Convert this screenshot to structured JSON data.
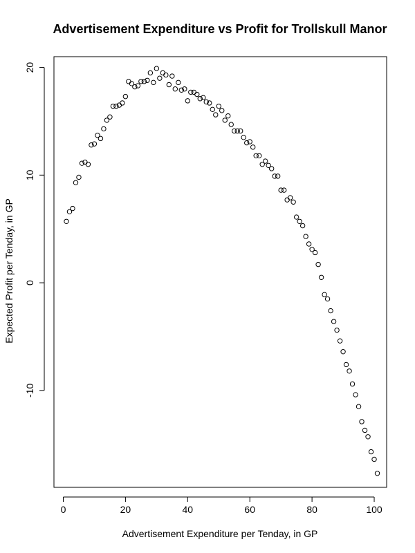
{
  "chart_data": {
    "type": "scatter",
    "title": "Advertisement Expenditure vs Profit for Trollskull Manor",
    "xlabel": "Advertisement Expenditure per Tenday, in GP",
    "ylabel": "Expected Profit per Tenday, in GP",
    "xlim": [
      -3,
      104
    ],
    "ylim": [
      -19,
      21
    ],
    "xticks": [
      0,
      20,
      40,
      60,
      80,
      100
    ],
    "yticks": [
      -10,
      0,
      10,
      20
    ],
    "grid": false,
    "legend": "none",
    "series": [
      {
        "marker": "open-circle",
        "color": "#000000",
        "x": [
          1,
          2,
          3,
          4,
          5,
          6,
          7,
          8,
          9,
          10,
          11,
          12,
          13,
          14,
          15,
          16,
          17,
          18,
          19,
          20,
          21,
          22,
          23,
          24,
          25,
          26,
          27,
          28,
          29,
          30,
          31,
          32,
          33,
          34,
          35,
          36,
          37,
          38,
          39,
          40,
          41,
          42,
          43,
          44,
          45,
          46,
          47,
          48,
          49,
          50,
          51,
          52,
          53,
          54,
          55,
          56,
          57,
          58,
          59,
          60,
          61,
          62,
          63,
          64,
          65,
          66,
          67,
          68,
          69,
          70,
          71,
          72,
          73,
          74,
          75,
          76,
          77,
          78,
          79,
          80,
          81,
          82,
          83,
          84,
          85,
          86,
          87,
          88,
          89,
          90,
          91,
          92,
          93,
          94,
          95,
          96,
          97,
          98,
          99,
          100,
          101
        ],
        "y": [
          5.7,
          6.6,
          6.9,
          9.3,
          9.8,
          11.1,
          11.2,
          11.0,
          12.8,
          12.9,
          13.7,
          13.4,
          14.3,
          15.1,
          15.4,
          16.4,
          16.4,
          16.5,
          16.7,
          17.3,
          18.7,
          18.5,
          18.2,
          18.3,
          18.7,
          18.7,
          18.8,
          19.5,
          18.6,
          19.9,
          19.0,
          19.5,
          19.3,
          18.4,
          19.2,
          18.0,
          18.6,
          17.9,
          18.0,
          16.9,
          17.7,
          17.7,
          17.5,
          17.1,
          17.2,
          16.8,
          16.7,
          16.1,
          15.6,
          16.4,
          16.0,
          15.1,
          15.5,
          14.7,
          14.1,
          14.1,
          14.1,
          13.5,
          13.0,
          13.1,
          12.6,
          11.8,
          11.8,
          11.0,
          11.3,
          10.9,
          10.6,
          9.9,
          9.9,
          8.6,
          8.6,
          7.7,
          7.9,
          7.5,
          6.1,
          5.7,
          5.3,
          4.3,
          3.6,
          3.1,
          2.8,
          1.7,
          0.5,
          -1.1,
          -1.5,
          -2.6,
          -3.6,
          -4.4,
          -5.4,
          -6.4,
          -7.6,
          -8.2,
          -9.4,
          -10.4,
          -11.5,
          -12.9,
          -13.7,
          -14.3,
          -15.7,
          -16.4,
          -17.7
        ]
      }
    ]
  }
}
